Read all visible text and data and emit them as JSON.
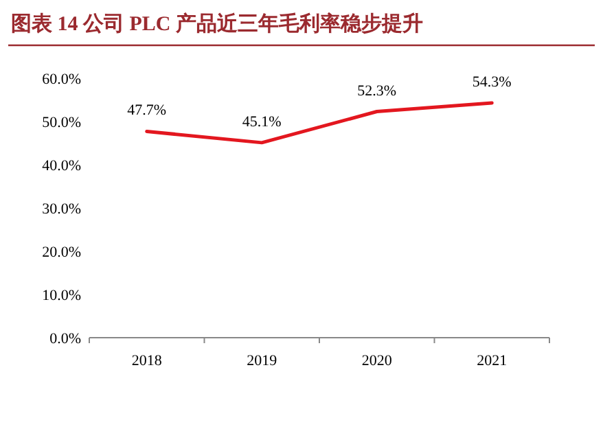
{
  "chart_data": {
    "type": "line",
    "title": "图表 14 公司 PLC 产品近三年毛利率稳步提升",
    "categories": [
      "2018",
      "2019",
      "2020",
      "2021"
    ],
    "series": [
      {
        "color": "#e3171f",
        "values": [
          47.7,
          45.1,
          52.3,
          54.3
        ],
        "value_labels": [
          "47.7%",
          "45.1%",
          "52.3%",
          "54.3%"
        ]
      }
    ],
    "ylim": [
      0,
      60
    ],
    "yticks": [
      {
        "value": 0,
        "label": "0.0%"
      },
      {
        "value": 10,
        "label": "10.0%"
      },
      {
        "value": 20,
        "label": "20.0%"
      },
      {
        "value": 30,
        "label": "30.0%"
      },
      {
        "value": 40,
        "label": "40.0%"
      },
      {
        "value": 50,
        "label": "50.0%"
      },
      {
        "value": 60,
        "label": "60.0%"
      }
    ],
    "grid": false,
    "marker": "none",
    "line_style": "solid"
  }
}
